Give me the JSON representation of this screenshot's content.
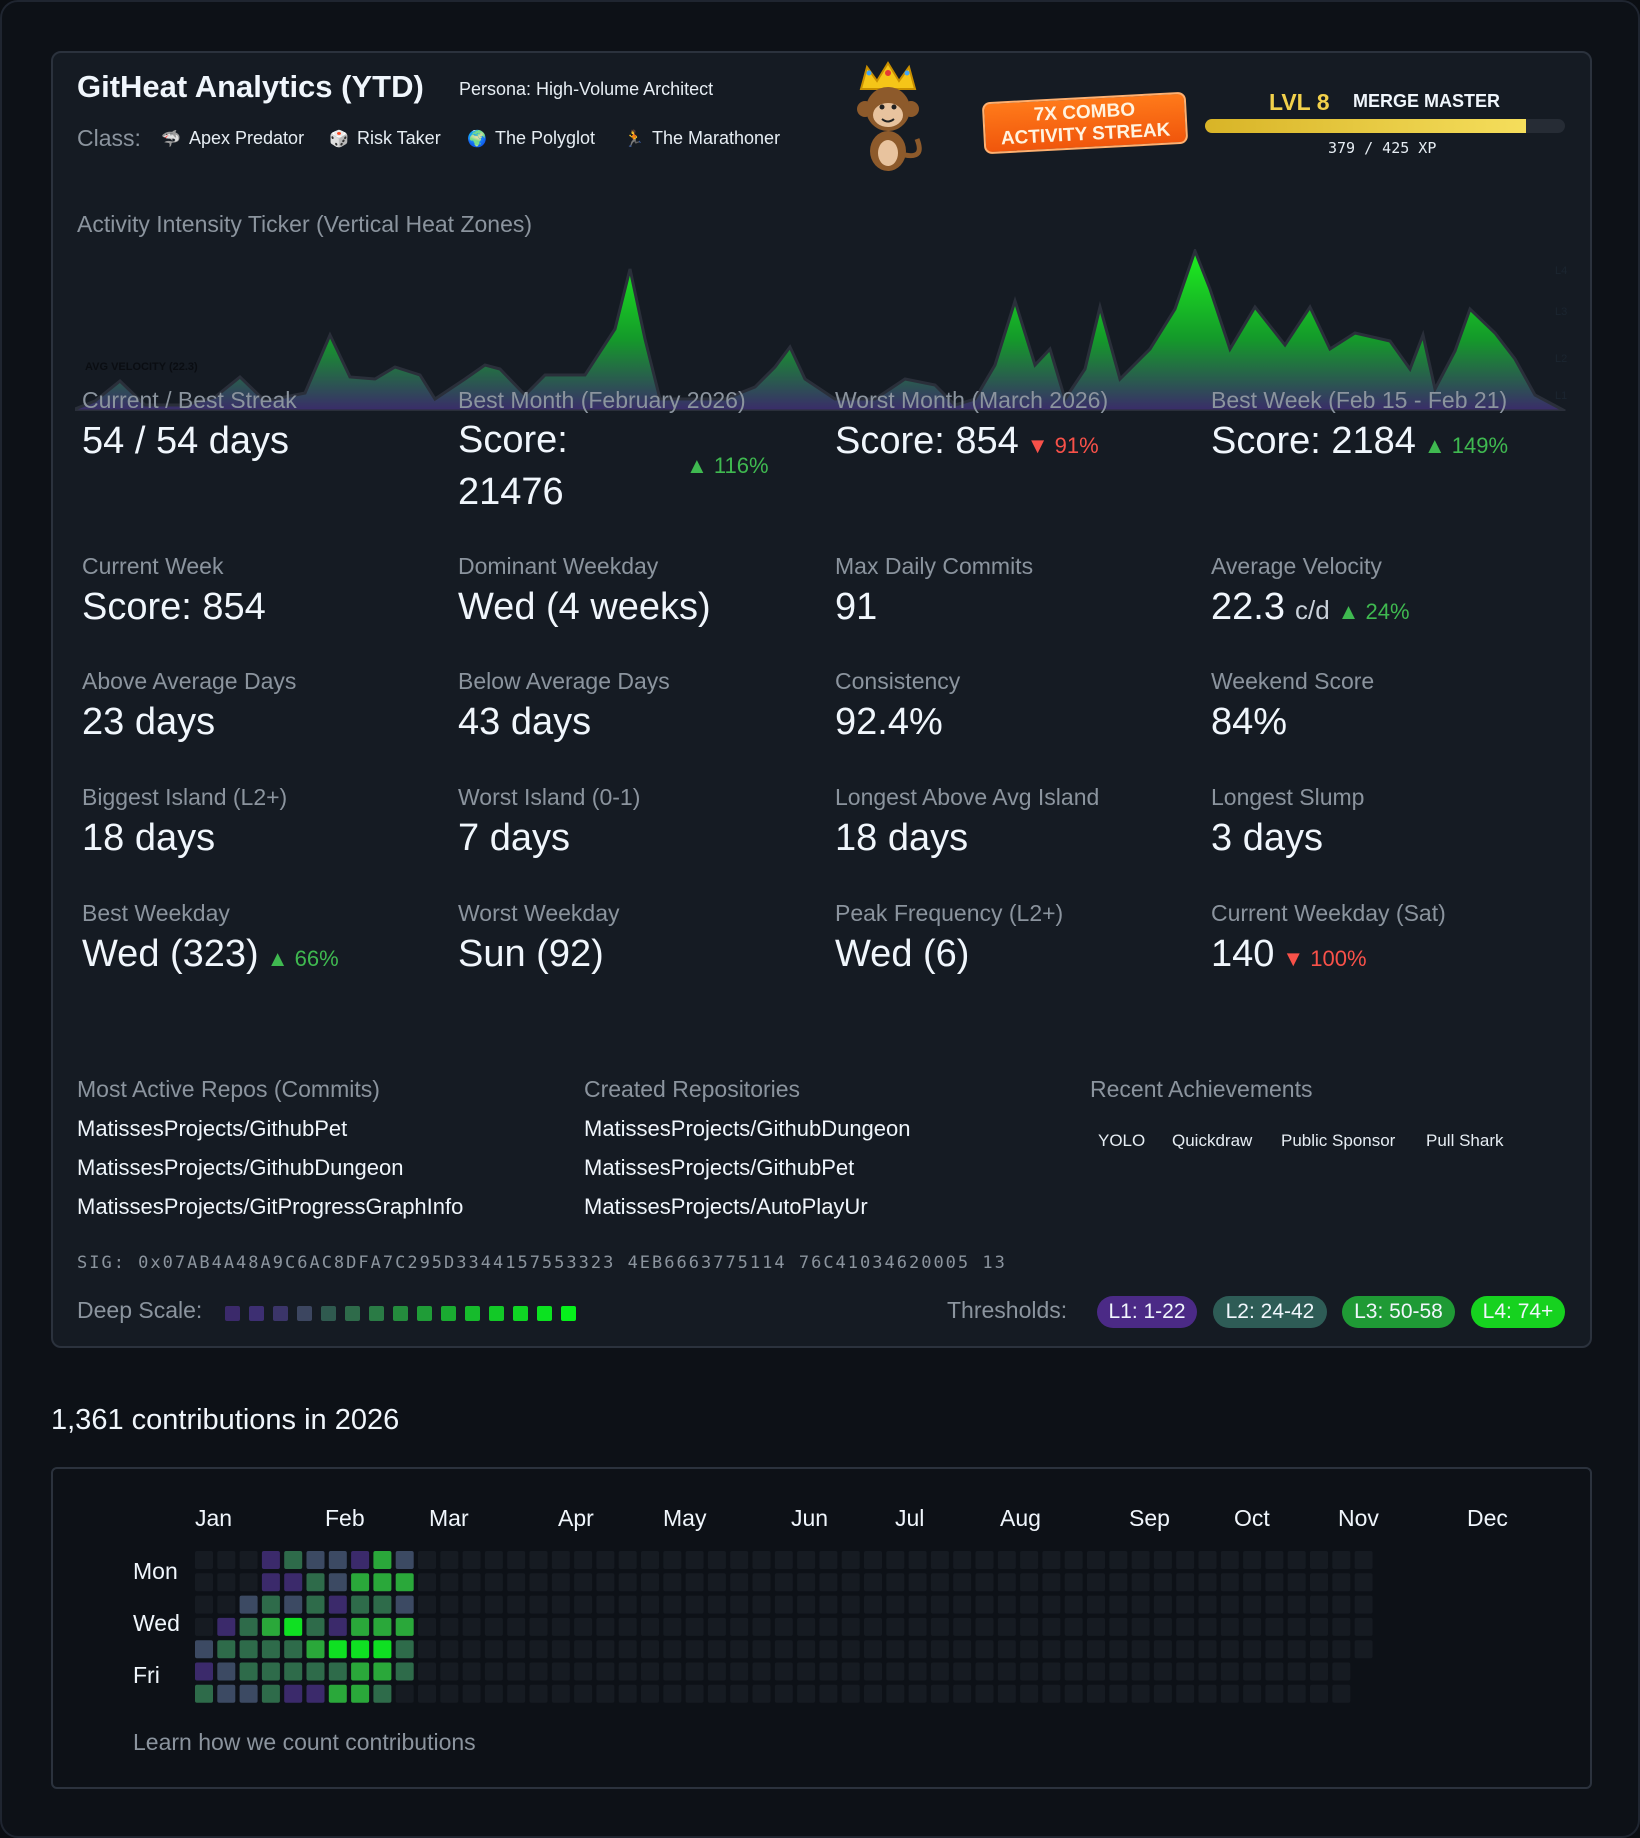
{
  "header": {
    "title": "GitHeat Analytics (YTD)",
    "persona": "Persona: High-Volume Architect",
    "class_label": "Class:",
    "classes": [
      {
        "icon": "shark-icon",
        "glyph": "🦈",
        "label": "Apex Predator"
      },
      {
        "icon": "dice-icon",
        "glyph": "🎲",
        "label": "Risk Taker"
      },
      {
        "icon": "globe-icon",
        "glyph": "🌍",
        "label": "The Polyglot"
      },
      {
        "icon": "runner-icon",
        "glyph": "🏃",
        "label": "The Marathoner"
      }
    ],
    "combo_line1": "7X COMBO",
    "combo_line2": "ACTIVITY STREAK",
    "level": "LVL 8",
    "rank": "MERGE MASTER",
    "xp_current": 379,
    "xp_max": 425,
    "xp_text": "379 / 425 XP"
  },
  "ticker": {
    "title": "Activity Intensity Ticker (Vertical Heat Zones)",
    "avg_label": "AVG VELOCITY (22.3)",
    "zone_labels": [
      "L4",
      "L3",
      "L2",
      "L1"
    ]
  },
  "stats": [
    {
      "label": "Current / Best Streak",
      "value": "54 / 54 days"
    },
    {
      "label": "Best Month (February 2026)",
      "value": "Score: 21476",
      "delta": "▲ 116%",
      "dir": "up"
    },
    {
      "label": "Worst Month (March 2026)",
      "value": "Score: 854",
      "delta": "▼ 91%",
      "dir": "down"
    },
    {
      "label": "Best Week (Feb 15 - Feb 21)",
      "value": "Score: 2184",
      "delta": "▲ 149%",
      "dir": "up"
    },
    {
      "label": "Current Week",
      "value": "Score: 854"
    },
    {
      "label": "Dominant Weekday",
      "value": "Wed (4 weeks)"
    },
    {
      "label": "Max Daily Commits",
      "value": "91"
    },
    {
      "label": "Average Velocity",
      "value": "22.3",
      "unit": "c/d",
      "delta": "▲ 24%",
      "dir": "up"
    },
    {
      "label": "Above Average Days",
      "value": "23 days"
    },
    {
      "label": "Below Average Days",
      "value": "43 days"
    },
    {
      "label": "Consistency",
      "value": "92.4%"
    },
    {
      "label": "Weekend Score",
      "value": "84%"
    },
    {
      "label": "Biggest Island (L2+)",
      "value": "18 days"
    },
    {
      "label": "Worst Island (0-1)",
      "value": "7 days"
    },
    {
      "label": "Longest Above Avg Island",
      "value": "18 days"
    },
    {
      "label": "Longest Slump",
      "value": "3 days"
    },
    {
      "label": "Best Weekday",
      "value": "Wed (323)",
      "delta": "▲ 66%",
      "dir": "up"
    },
    {
      "label": "Worst Weekday",
      "value": "Sun (92)"
    },
    {
      "label": "Peak Frequency (L2+)",
      "value": "Wed (6)"
    },
    {
      "label": "Current Weekday (Sat)",
      "value": "140",
      "delta": "▼ 100%",
      "dir": "down"
    }
  ],
  "repos": {
    "active_title": "Most Active Repos (Commits)",
    "active": [
      "MatissesProjects/GithubPet",
      "MatissesProjects/GithubDungeon",
      "MatissesProjects/GitProgressGraphInfo"
    ],
    "created_title": "Created Repositories",
    "created": [
      "MatissesProjects/GithubDungeon",
      "MatissesProjects/GithubPet",
      "MatissesProjects/AutoPlayUr"
    ],
    "ach_title": "Recent Achievements",
    "achievements": [
      "YOLO",
      "Quickdraw",
      "Public Sponsor",
      "Pull Shark"
    ]
  },
  "footer": {
    "sig": "SIG: 0x07AB4A48A9C6AC8DFA7C295D3344157553323 4EB6663775114 76C41034620005 13",
    "deep_label": "Deep Scale:",
    "scale_colors": [
      "#3b2a6b",
      "#3d2f72",
      "#3b3569",
      "#3c4660",
      "#2f5a4f",
      "#2e6b4a",
      "#2a7b45",
      "#248c3d",
      "#1f9c37",
      "#1aab31",
      "#16bb2c",
      "#12c927",
      "#0fd624",
      "#0be220",
      "#06f01b"
    ],
    "thresholds_label": "Thresholds:",
    "thresholds": [
      {
        "label": "L1: 1-22",
        "color": "#4b2a86"
      },
      {
        "label": "L2: 24-42",
        "color": "#2e5c56"
      },
      {
        "label": "L3: 50-58",
        "color": "#1f9a35"
      },
      {
        "label": "L4: 74+",
        "color": "#16d21f"
      }
    ]
  },
  "contributions": {
    "title": "1,361 contributions in 2026",
    "months": [
      "Jan",
      "Feb",
      "Mar",
      "Apr",
      "May",
      "Jun",
      "Jul",
      "Aug",
      "Sep",
      "Oct",
      "Nov",
      "Dec"
    ],
    "days": [
      "Mon",
      "Wed",
      "Fri"
    ],
    "learn": "Learn how we count contributions",
    "level_colors": [
      "#161b22",
      "#3b2a6b",
      "#3c4a63",
      "#2e6b4a",
      "#2aa83a",
      "#0fe022"
    ]
  }
}
